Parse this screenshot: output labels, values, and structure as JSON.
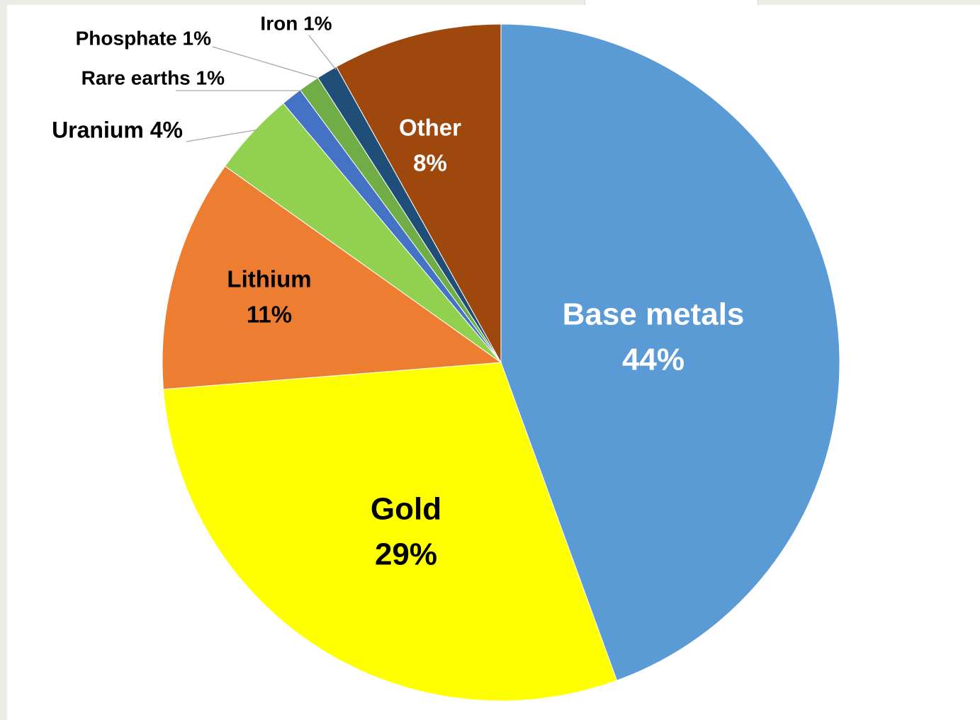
{
  "chart_data": {
    "type": "pie",
    "title": "",
    "start_angle_deg": 0,
    "direction": "clockwise",
    "slices": [
      {
        "label": "Base metals",
        "pct_text": "44%",
        "value": 44,
        "color": "#5b9bd5",
        "label_color": "#ffffff"
      },
      {
        "label": "Gold",
        "pct_text": "29%",
        "value": 29,
        "color": "#ffff00",
        "label_color": "#000000"
      },
      {
        "label": "Lithium",
        "pct_text": "11%",
        "value": 11,
        "color": "#ed7d31",
        "label_color": "#000000"
      },
      {
        "label": "Uranium",
        "pct_text": "4%",
        "value": 4,
        "color": "#92d050",
        "label_color": "#000000"
      },
      {
        "label": "Rare earths",
        "pct_text": "1%",
        "value": 1,
        "color": "#4472c4",
        "label_color": "#000000"
      },
      {
        "label": "Phosphate",
        "pct_text": "1%",
        "value": 1,
        "color": "#70ad47",
        "label_color": "#000000"
      },
      {
        "label": "Iron",
        "pct_text": "1%",
        "value": 1,
        "color": "#1f4e79",
        "label_color": "#000000"
      },
      {
        "label": "Other",
        "pct_text": "8%",
        "value": 8,
        "color": "#9e480e",
        "label_color": "#ffffff"
      }
    ]
  }
}
